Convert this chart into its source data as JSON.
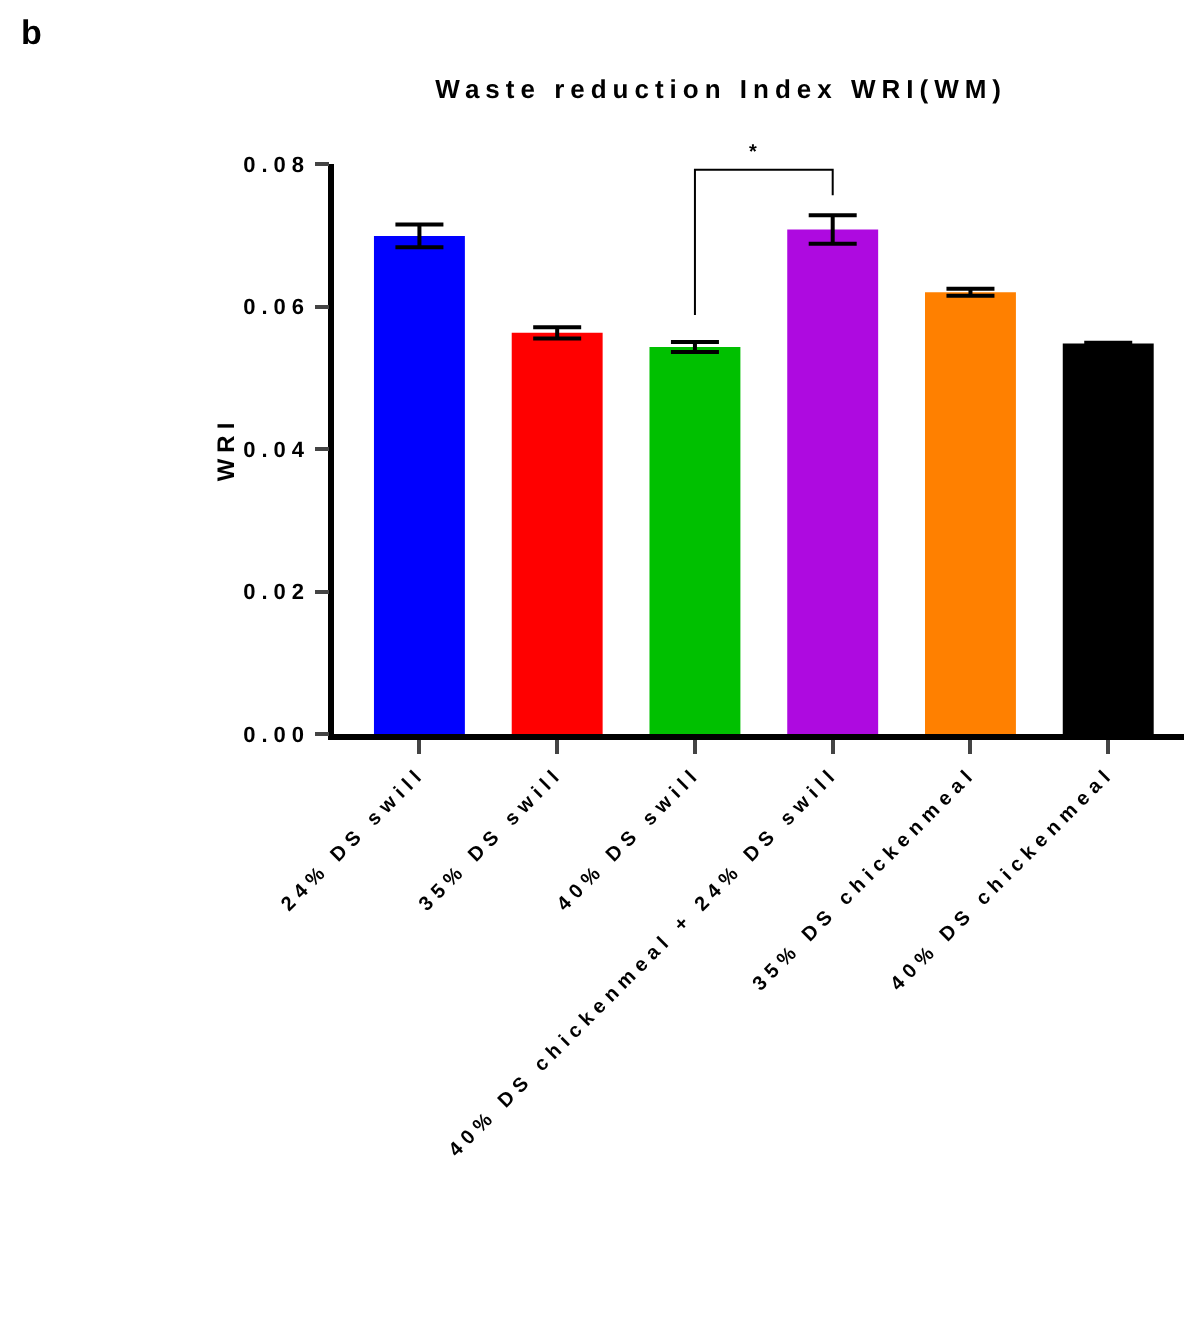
{
  "chart_data": {
    "type": "bar",
    "title": "Waste reduction Index WRI(WM)",
    "ylabel": "WRI",
    "annotations": [
      "b",
      "*"
    ],
    "categories": [
      "24% DS swill",
      "35% DS swill",
      "40% DS swill",
      "40% DS chickenmeal + 24% DS swill",
      "35% DS chickenmeal",
      "40% DS chickenmeal"
    ],
    "values": [
      0.0699,
      0.0563,
      0.0543,
      0.0708,
      0.062,
      0.0548
    ],
    "colors": [
      "#0000ff",
      "#ff0000",
      "#00c000",
      "#ae0ae0",
      "#ff8000",
      "#000000"
    ],
    "errors": [
      0.0016,
      0.0008,
      0.0007,
      0.002,
      0.0005,
      0.0001
    ],
    "ylim": [
      0,
      0.08
    ],
    "yticks": [
      {
        "value": 0,
        "label": "0.00"
      },
      {
        "value": 0.02,
        "label": "0.02"
      },
      {
        "value": 0.04,
        "label": "0.04"
      },
      {
        "value": 0.06,
        "label": "0.06"
      },
      {
        "value": 0.08,
        "label": "0.08"
      }
    ],
    "grid": false
  }
}
